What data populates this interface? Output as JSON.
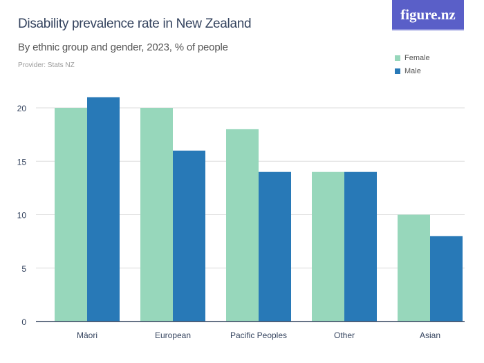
{
  "logo": "figure.nz",
  "chart_data": {
    "type": "bar",
    "title": "Disability prevalence rate in New Zealand",
    "subtitle": "By ethnic group and gender, 2023, % of people",
    "provider": "Provider: Stats NZ",
    "categories": [
      "Māori",
      "European",
      "Pacific Peoples",
      "Other",
      "Asian"
    ],
    "series": [
      {
        "name": "Female",
        "color": "#97d7bb",
        "values": [
          20,
          20,
          18,
          14,
          10
        ]
      },
      {
        "name": "Male",
        "color": "#2879b7",
        "values": [
          21,
          16,
          14,
          14,
          8
        ]
      }
    ],
    "yticks": [
      "0",
      "5",
      "10",
      "15",
      "20"
    ],
    "ylim": [
      0,
      20
    ],
    "grid": true,
    "legend": "top-right"
  }
}
